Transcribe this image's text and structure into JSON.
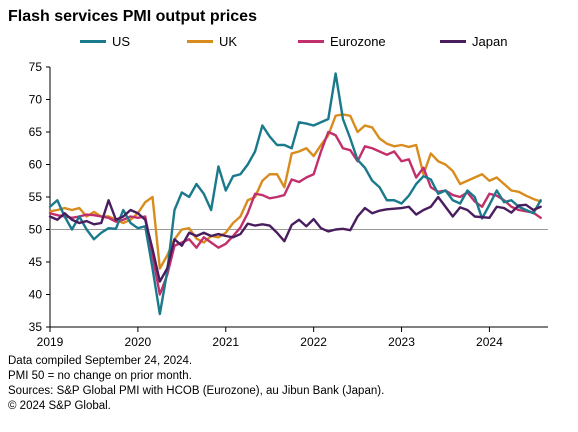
{
  "title": "Flash services PMI output prices",
  "notes": [
    "Data compiled September 24, 2024.",
    "PMI 50 = no change on prior month.",
    "Sources: S&P Global PMI with HCOB (Eurozone), au Jibun Bank (Japan).",
    "© 2024 S&P Global."
  ],
  "chart_data": {
    "type": "line",
    "title": "Flash services PMI output prices",
    "xlabel": "",
    "ylabel": "",
    "x_start": "2019-01",
    "x_end": "2024-09",
    "x_ticks": [
      "2019",
      "2020",
      "2021",
      "2022",
      "2023",
      "2024"
    ],
    "ylim": [
      35,
      75
    ],
    "y_ticks": [
      35,
      40,
      45,
      50,
      55,
      60,
      65,
      70,
      75
    ],
    "reference_line": 50,
    "grid": false,
    "legend_position": "top",
    "series": [
      {
        "name": "US",
        "color": "#1a7a8c",
        "values": [
          53.5,
          54.5,
          52.0,
          50.0,
          52.0,
          50.0,
          48.5,
          49.5,
          50.2,
          50.1,
          53.0,
          51.0,
          50.2,
          50.5,
          44.0,
          37.0,
          43.5,
          53.0,
          55.7,
          55.0,
          57.0,
          55.5,
          53.0,
          59.7,
          56.0,
          58.2,
          58.5,
          60.0,
          62.0,
          66.0,
          64.3,
          63.0,
          63.0,
          62.5,
          66.5,
          66.3,
          66.0,
          66.5,
          67.0,
          74.0,
          67.0,
          64.0,
          60.7,
          59.5,
          57.5,
          56.5,
          54.5,
          54.5,
          54.0,
          55.2,
          57.0,
          58.2,
          57.7,
          55.5,
          56.0,
          54.5,
          54.0,
          56.0,
          55.0,
          51.7,
          53.8,
          56.0,
          54.2,
          54.5,
          53.5,
          53.0,
          52.5,
          54.5
        ]
      },
      {
        "name": "UK",
        "color": "#d98c1e",
        "values": [
          52.8,
          53.0,
          53.3,
          53.0,
          53.3,
          52.0,
          52.7,
          52.0,
          52.0,
          51.5,
          51.0,
          51.5,
          52.5,
          54.2,
          55.0,
          44.0,
          46.0,
          48.5,
          50.0,
          50.2,
          48.6,
          48.0,
          49.0,
          48.8,
          49.5,
          51.0,
          52.0,
          54.5,
          55.0,
          57.5,
          58.5,
          58.5,
          56.5,
          61.7,
          62.0,
          62.5,
          61.3,
          63.0,
          64.5,
          67.5,
          67.7,
          67.5,
          65.0,
          66.0,
          65.7,
          64.0,
          63.2,
          62.8,
          63.0,
          62.7,
          63.0,
          58.5,
          61.7,
          60.5,
          60.0,
          59.0,
          57.0,
          57.5,
          58.0,
          58.5,
          57.5,
          58.0,
          57.0,
          56.0,
          55.8,
          55.2,
          54.7,
          54.3
        ]
      },
      {
        "name": "Eurozone",
        "color": "#c2306b",
        "values": [
          52.5,
          52.2,
          52.0,
          51.8,
          52.0,
          52.3,
          52.2,
          52.0,
          51.8,
          51.2,
          51.5,
          52.0,
          51.8,
          52.0,
          46.0,
          40.0,
          43.0,
          47.5,
          48.0,
          48.5,
          47.2,
          48.8,
          48.0,
          47.2,
          47.8,
          49.0,
          50.3,
          52.5,
          55.5,
          55.3,
          54.8,
          55.0,
          55.3,
          57.7,
          57.3,
          58.0,
          58.5,
          62.0,
          65.0,
          64.5,
          62.5,
          62.2,
          60.5,
          62.8,
          62.5,
          62.0,
          61.5,
          62.0,
          60.5,
          60.8,
          58.0,
          59.5,
          56.5,
          55.8,
          56.0,
          55.3,
          55.0,
          55.7,
          54.3,
          53.5,
          55.5,
          55.2,
          54.5,
          53.5,
          53.0,
          52.8,
          52.6,
          51.8
        ]
      },
      {
        "name": "Japan",
        "color": "#4a1e5e",
        "values": [
          52.0,
          51.5,
          52.5,
          51.5,
          51.0,
          51.3,
          50.8,
          51.0,
          54.5,
          51.5,
          52.0,
          53.0,
          52.5,
          51.5,
          47.0,
          42.0,
          44.0,
          48.5,
          47.5,
          49.5,
          49.0,
          49.5,
          49.0,
          49.3,
          49.0,
          48.8,
          49.3,
          50.9,
          50.6,
          50.8,
          50.6,
          49.5,
          48.2,
          50.7,
          51.5,
          50.5,
          51.6,
          50.2,
          49.7,
          50.0,
          50.1,
          49.9,
          52.0,
          53.3,
          52.5,
          52.9,
          53.1,
          53.2,
          53.3,
          53.5,
          52.3,
          53.0,
          53.5,
          55.0,
          53.5,
          52.0,
          53.4,
          53.0,
          52.0,
          51.9,
          51.8,
          53.5,
          53.3,
          52.6,
          53.7,
          53.8,
          53.0,
          53.5
        ]
      }
    ]
  }
}
